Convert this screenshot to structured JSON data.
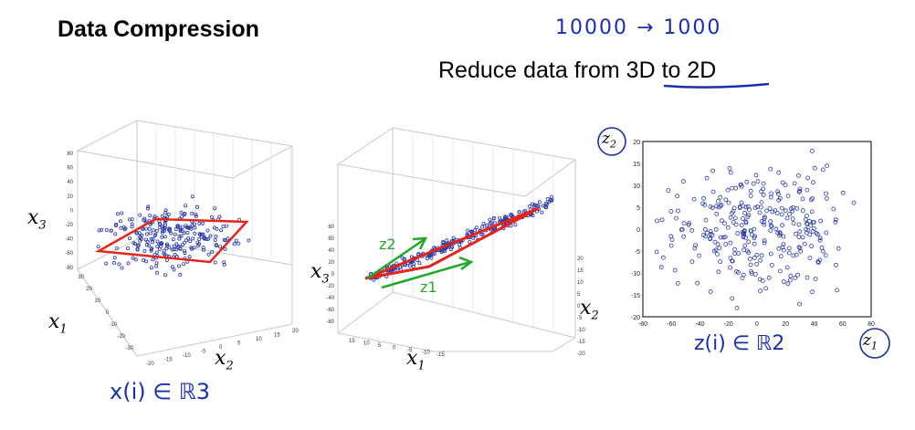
{
  "slide": {
    "title": "Data Compression",
    "subtitle": "Reduce data from 3D to 2D",
    "note": "10000 → 1000"
  },
  "plot1": {
    "axis_x1": "x1",
    "axis_x2": "x2",
    "axis_x3": "x3",
    "annotation": "x(i) ∈ ℝ3",
    "x3_ticks": [
      "80",
      "60",
      "40",
      "20",
      "0",
      "-20",
      "-40",
      "-60",
      "-80"
    ],
    "x1_ticks": [
      "30",
      "20",
      "10",
      "0",
      "-10",
      "-20",
      "-30"
    ],
    "x2_ticks": [
      "-20",
      "-15",
      "-10",
      "-5",
      "0",
      "5",
      "10",
      "15",
      "20"
    ]
  },
  "plot2": {
    "axis_x1": "x1",
    "axis_x2": "x2",
    "axis_x3": "x3",
    "arrow_z1": "z1",
    "arrow_z2": "z2",
    "x3_ticks": [
      "80",
      "60",
      "40",
      "20",
      "0",
      "-20",
      "-40",
      "-60",
      "-80"
    ],
    "x1_ticks": [
      "15",
      "10",
      "5",
      "0",
      "-5",
      "-10",
      "-15"
    ],
    "x2_ticks": [
      "20",
      "15",
      "10",
      "5",
      "0",
      "-5",
      "-10",
      "-15",
      "-20"
    ]
  },
  "plot3": {
    "axis_z1": "z1",
    "axis_z2": "z2",
    "annotation": "z(i) ∈ ℝ2",
    "x_ticks": [
      "-80",
      "-60",
      "-40",
      "-20",
      "0",
      "20",
      "40",
      "60",
      "80"
    ],
    "y_ticks": [
      "20",
      "15",
      "10",
      "5",
      "0",
      "-5",
      "-10",
      "-15",
      "-20"
    ],
    "xlim": [
      -80,
      80
    ],
    "ylim": [
      -20,
      20
    ]
  },
  "colors": {
    "points": "#2a3aa8",
    "red_outline": "#e8231a",
    "green_arrows": "#1fa82a",
    "ink_blue": "#1a2fb0"
  }
}
